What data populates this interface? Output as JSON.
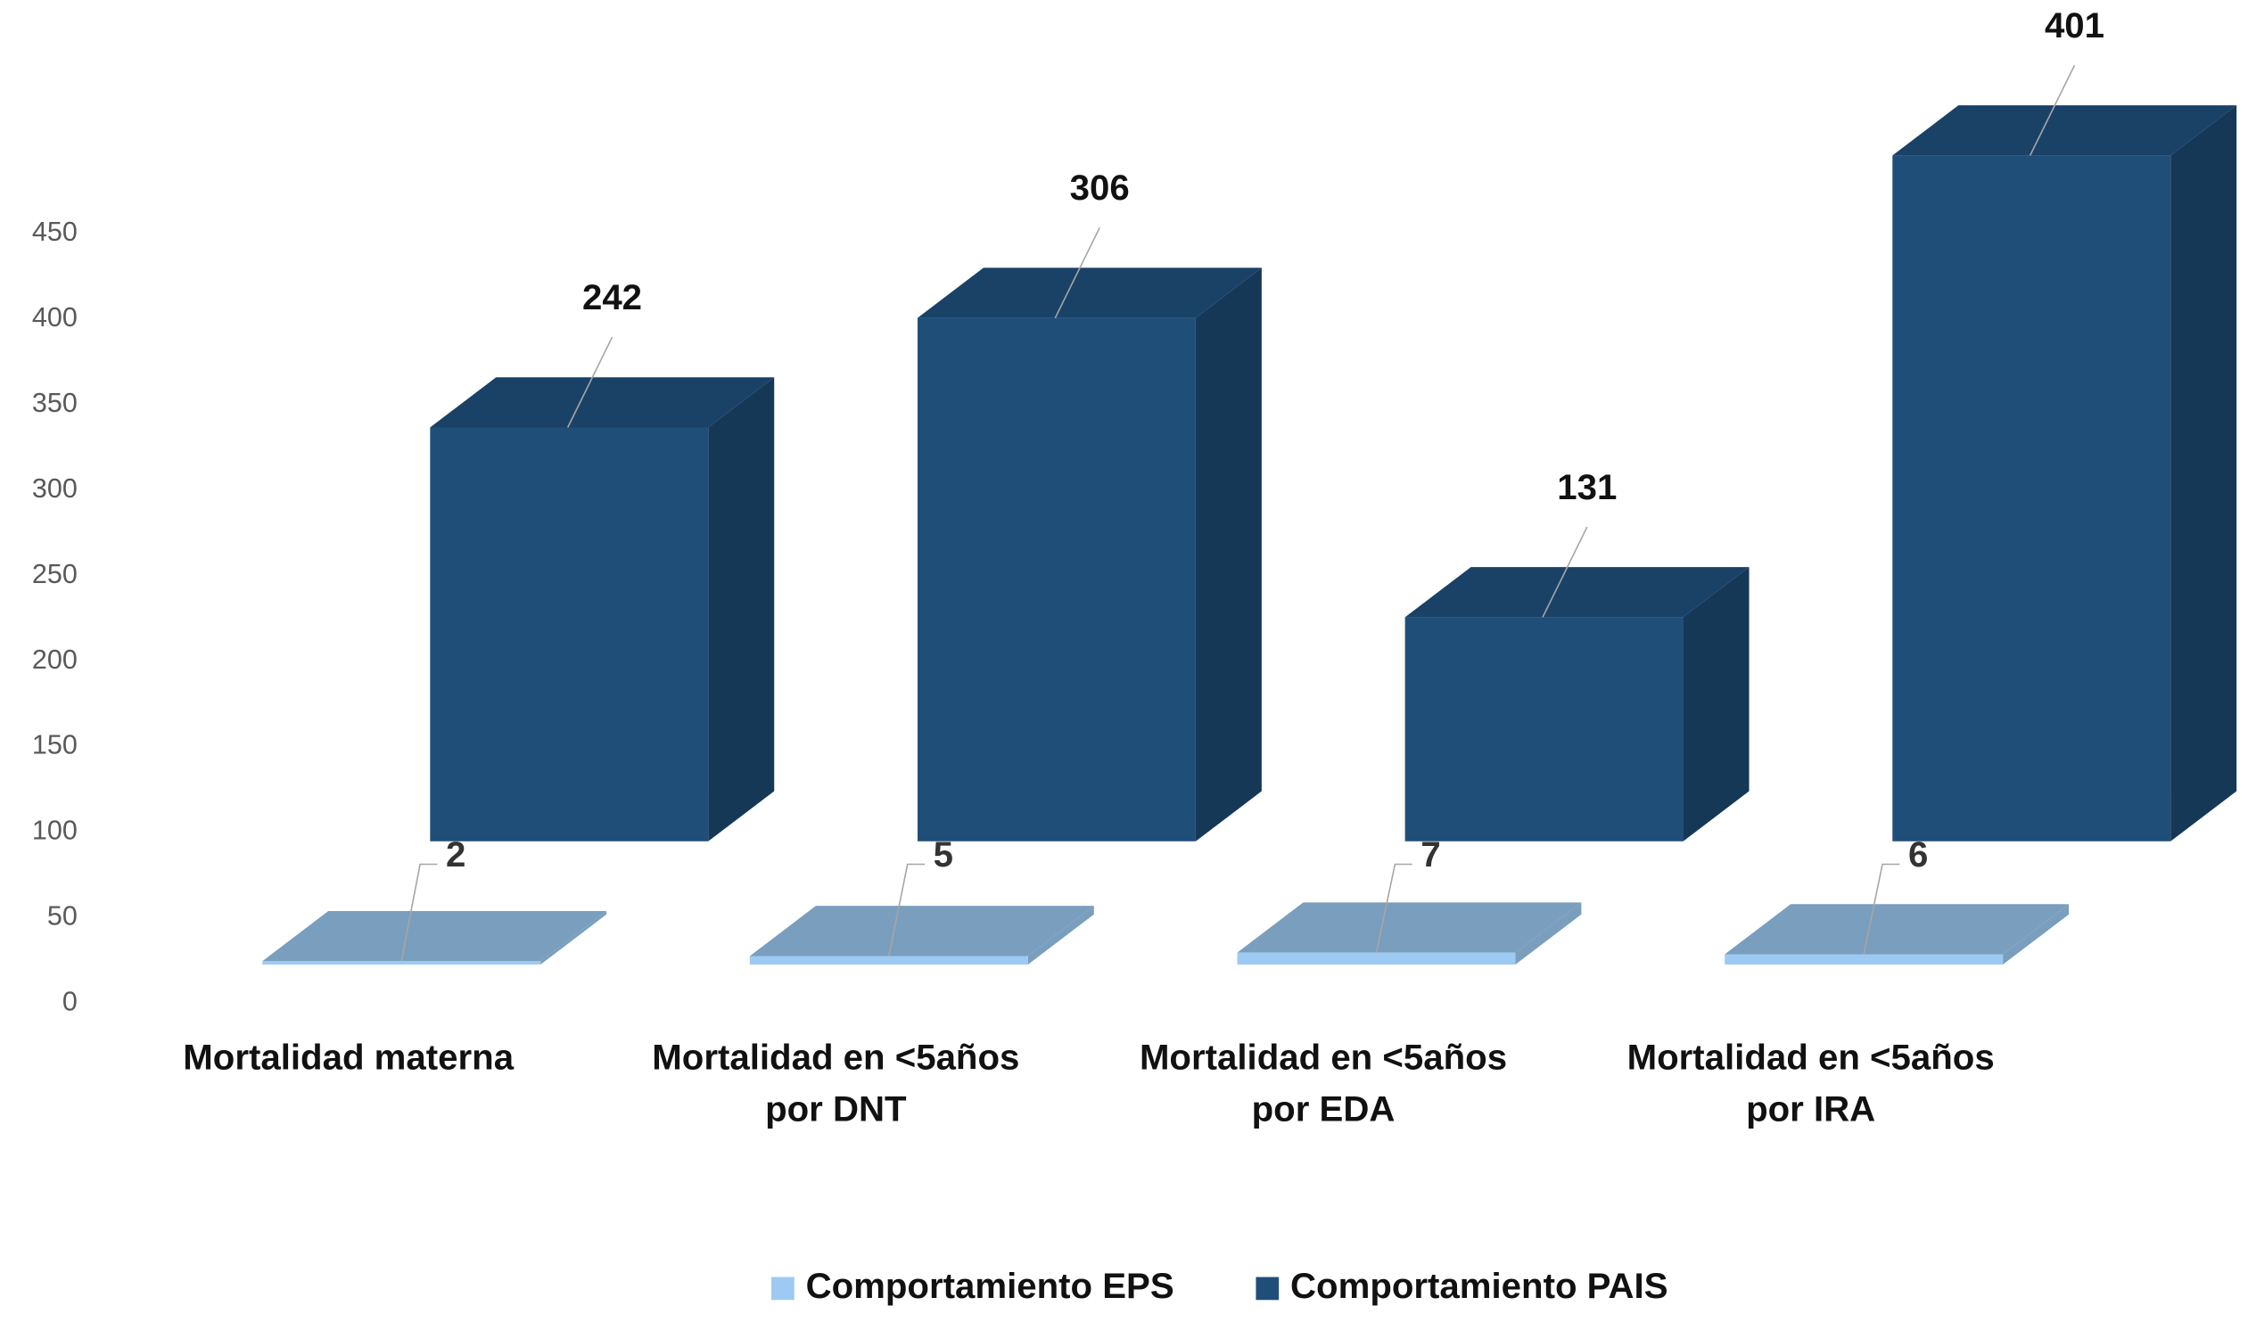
{
  "chart_data": {
    "type": "bar3d",
    "categories": [
      "Mortalidad materna",
      "Mortalidad en <5años\npor DNT",
      "Mortalidad en <5años\npor EDA",
      "Mortalidad en <5años\npor IRA"
    ],
    "series": [
      {
        "name": "Comportamiento EPS",
        "color": "#9dcaf3",
        "values": [
          2,
          5,
          7,
          6
        ]
      },
      {
        "name": "Comportamiento PAIS",
        "color": "#1f4e79",
        "values": [
          242,
          306,
          131,
          401
        ]
      }
    ],
    "ylim": [
      0,
      450
    ],
    "yticks": [
      0,
      50,
      100,
      150,
      200,
      250,
      300,
      350,
      400,
      450
    ],
    "legend": "bottom"
  }
}
